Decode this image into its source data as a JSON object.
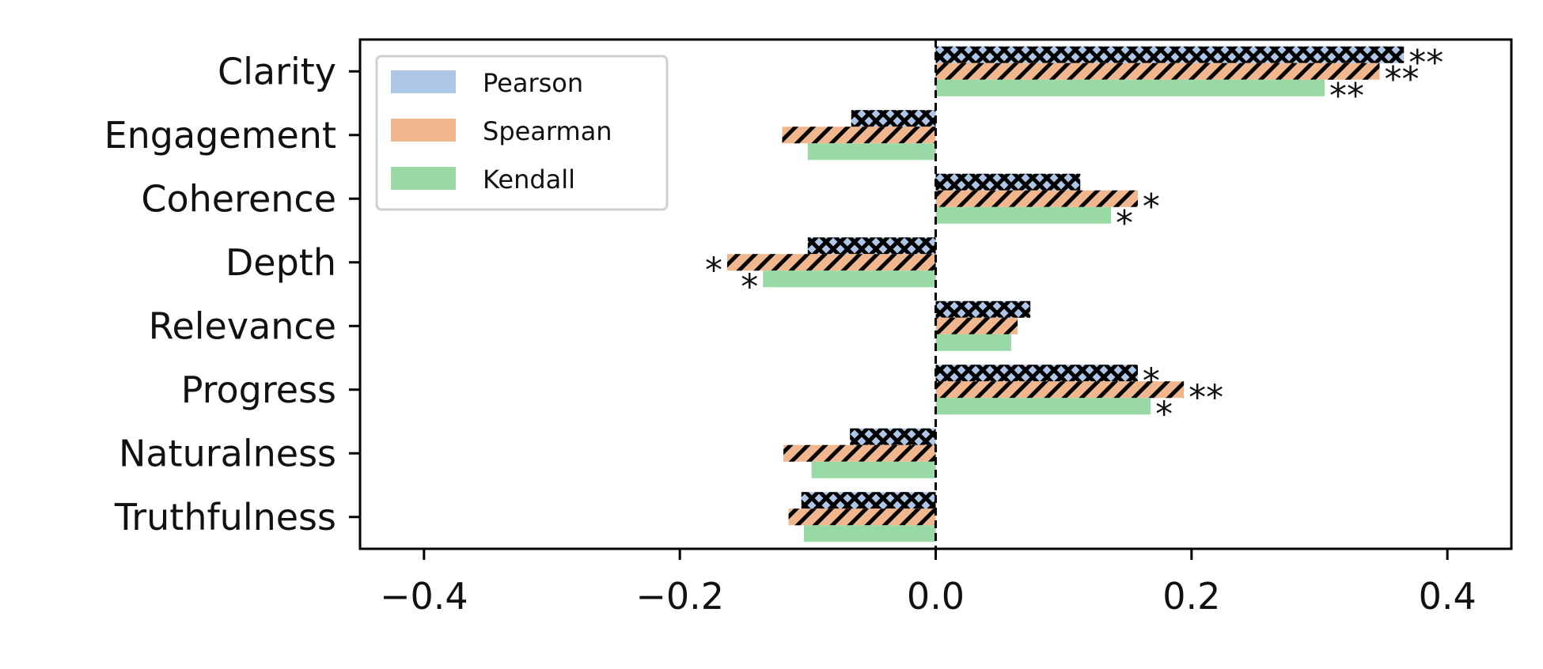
{
  "chart_data": {
    "type": "bar",
    "orientation": "horizontal",
    "categories": [
      "Clarity",
      "Engagement",
      "Coherence",
      "Depth",
      "Relevance",
      "Progress",
      "Naturalness",
      "Truthfulness"
    ],
    "series": [
      {
        "name": "Pearson",
        "color": "#aec7e8",
        "hatch": "crosshatch",
        "values": [
          0.366,
          -0.066,
          0.113,
          -0.1,
          0.074,
          0.158,
          -0.067,
          -0.105
        ],
        "significance": [
          "**",
          "",
          "",
          "",
          "",
          "*",
          "",
          ""
        ]
      },
      {
        "name": "Spearman",
        "color": "#f0b68e",
        "hatch": "diagonal",
        "values": [
          0.347,
          -0.12,
          0.158,
          -0.163,
          0.064,
          0.194,
          -0.119,
          -0.115
        ],
        "significance": [
          "**",
          "",
          "*",
          "*",
          "",
          "**",
          "",
          ""
        ]
      },
      {
        "name": "Kendall",
        "color": "#98d9a5",
        "hatch": "none",
        "values": [
          0.304,
          -0.1,
          0.137,
          -0.135,
          0.059,
          0.168,
          -0.097,
          -0.103
        ],
        "significance": [
          "**",
          "",
          "*",
          "*",
          "",
          "*",
          "",
          ""
        ]
      }
    ],
    "xticks": [
      -0.4,
      -0.2,
      0.0,
      0.2,
      0.4
    ],
    "xtick_labels": [
      "−0.4",
      "−0.2",
      "0.0",
      "0.2",
      "0.4"
    ],
    "xlim": [
      -0.45,
      0.45
    ],
    "reference_line": 0.0,
    "legend_position": "top-left",
    "grid": false,
    "title": "",
    "xlabel": "",
    "ylabel": ""
  }
}
